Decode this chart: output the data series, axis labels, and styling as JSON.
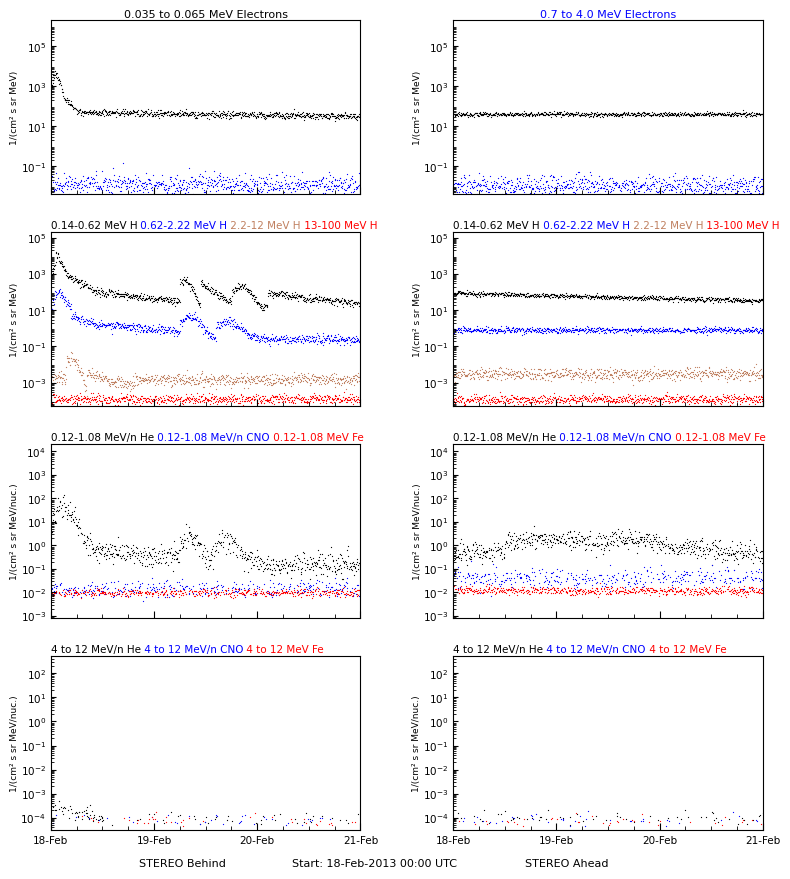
{
  "title_row1_left": "0.035 to 0.065 MeV Electrons",
  "title_row1_right": "0.7 to 4.0 MeV Electrons",
  "title_row2_left": [
    {
      "text": "0.14-0.62 MeV H",
      "color": "black"
    },
    {
      "text": " 0.62-2.22 MeV H",
      "color": "blue"
    },
    {
      "text": " 2.2-12 MeV H",
      "color": "#c08060"
    },
    {
      "text": " 13-100 MeV H",
      "color": "red"
    }
  ],
  "title_row2_right": [
    {
      "text": "0.14-0.62 MeV H",
      "color": "black"
    },
    {
      "text": " 0.62-2.22 MeV H",
      "color": "blue"
    },
    {
      "text": " 2.2-12 MeV H",
      "color": "#c08060"
    },
    {
      "text": " 13-100 MeV H",
      "color": "red"
    }
  ],
  "title_row3_left": [
    {
      "text": "0.12-1.08 MeV/n He",
      "color": "black"
    },
    {
      "text": " 0.12-1.08 MeV/n CNO",
      "color": "blue"
    },
    {
      "text": " 0.12-1.08 MeV Fe",
      "color": "red"
    }
  ],
  "title_row3_right": [
    {
      "text": "0.12-1.08 MeV/n He",
      "color": "black"
    },
    {
      "text": " 0.12-1.08 MeV/n CNO",
      "color": "blue"
    },
    {
      "text": " 0.12-1.08 MeV Fe",
      "color": "red"
    }
  ],
  "title_row4_left": [
    {
      "text": "4 to 12 MeV/n He",
      "color": "black"
    },
    {
      "text": " 4 to 12 MeV/n CNO",
      "color": "blue"
    },
    {
      "text": " 4 to 12 MeV Fe",
      "color": "red"
    }
  ],
  "title_row4_right": [
    {
      "text": "4 to 12 MeV/n He",
      "color": "black"
    },
    {
      "text": " 4 to 12 MeV/n CNO",
      "color": "blue"
    },
    {
      "text": " 4 to 12 MeV Fe",
      "color": "red"
    }
  ],
  "ylabel_elec": "1/(cm² s sr MeV)",
  "ylabel_H": "1/(cm² s sr MeV)",
  "ylabel_heavy": "1/(cm² s sr MeV/nuc.)",
  "xlabel_left": "STEREO Behind",
  "xlabel_center": "Start: 18-Feb-2013 00:00 UTC",
  "xlabel_right": "STEREO Ahead",
  "xtick_labels": [
    "18-Feb",
    "19-Feb",
    "20-Feb",
    "21-Feb"
  ],
  "seed": 42
}
